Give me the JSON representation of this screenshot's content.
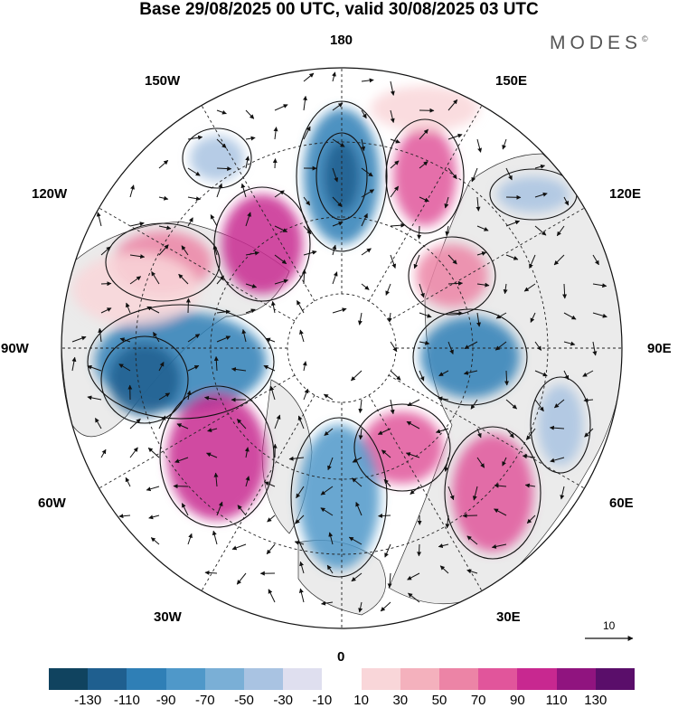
{
  "title": "Base 29/08/2025 00 UTC, valid 30/08/2025 03 UTC",
  "brand": {
    "name": "MODES",
    "mark": "©"
  },
  "meridian_labels": {
    "m180": "180",
    "m150w": "150W",
    "m150e": "150E",
    "m120w": "120W",
    "m120e": "120E",
    "m90w": "90W",
    "m90e": "90E",
    "m60w": "60W",
    "m60e": "60E",
    "m30w": "30W",
    "m30e": "30E",
    "m0": "0"
  },
  "vector_scale": {
    "label": "10"
  },
  "colorbar": {
    "tick_labels": [
      "-130",
      "-110",
      "-90",
      "-70",
      "-50",
      "-30",
      "-10",
      "10",
      "30",
      "50",
      "70",
      "90",
      "110",
      "130"
    ],
    "colors": [
      "#10435f",
      "#1f5f8f",
      "#2f7fb6",
      "#4f98c9",
      "#7aafd6",
      "#a9c3e2",
      "#dfdfef",
      "#ffffff",
      "#f9d6d9",
      "#f4b1bd",
      "#ec84a6",
      "#e1559b",
      "#c82890",
      "#90147f",
      "#5a0e6a"
    ]
  },
  "colors": {
    "positive": "#e1559b",
    "negative": "#2f7fb6",
    "land": "#ececec"
  }
}
